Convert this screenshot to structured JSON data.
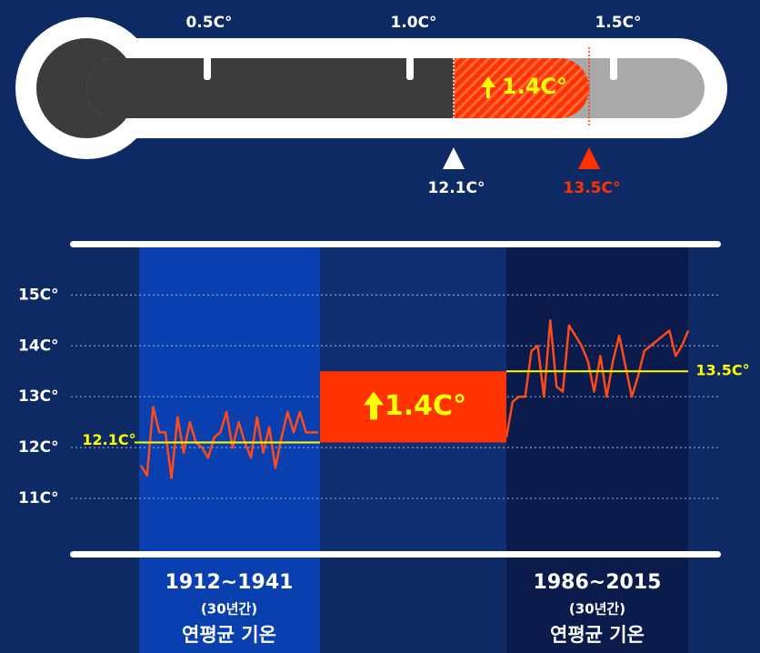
{
  "thermometer": {
    "ticks": [
      "0.5C°",
      "1.0C°",
      "1.5C°"
    ],
    "markers": [
      "12.1C°",
      "13.5C°"
    ],
    "difference": "1.4C°"
  },
  "chart_data": {
    "type": "line",
    "ylim": [
      10,
      15.9
    ],
    "yticks": [
      {
        "value": 11,
        "label": "11C°"
      },
      {
        "value": 12,
        "label": "12C°"
      },
      {
        "value": 13,
        "label": "13C°"
      },
      {
        "value": 14,
        "label": "14C°"
      },
      {
        "value": 15,
        "label": "15C°"
      }
    ],
    "grid": true,
    "color": "#ff4a1a",
    "series": [
      {
        "label": "1912~1941",
        "period": "(30년간)",
        "caption": "연평균 기온",
        "values": [
          11.65,
          11.45,
          12.8,
          12.3,
          12.3,
          11.4,
          12.6,
          11.9,
          12.5,
          12.1,
          12.0,
          11.8,
          12.2,
          12.3,
          12.7,
          12.0,
          12.5,
          12.1,
          11.8,
          12.6,
          11.9,
          12.4,
          11.6,
          12.2,
          12.7,
          12.3,
          12.7,
          12.3,
          12.3,
          12.3
        ]
      },
      {
        "label": "1986~2015",
        "period": "(30년간)",
        "caption": "연평균 기온",
        "values": [
          12.2,
          12.9,
          13.0,
          13.0,
          13.9,
          14.0,
          13.0,
          14.5,
          13.2,
          13.1,
          14.4,
          14.2,
          14.0,
          13.7,
          13.1,
          13.8,
          13.0,
          13.7,
          14.2,
          13.6,
          13.0,
          13.4,
          13.9,
          14.0,
          14.1,
          14.2,
          14.3,
          13.8,
          14.0,
          14.3
        ]
      }
    ],
    "means": [
      {
        "value": 12.1,
        "label": "12.1C°"
      },
      {
        "value": 13.5,
        "label": "13.5C°"
      }
    ],
    "difference": {
      "value": 1.4,
      "label": "1.4C°"
    },
    "mean_color": "#ffff00",
    "bar_color": "#ff3300"
  }
}
